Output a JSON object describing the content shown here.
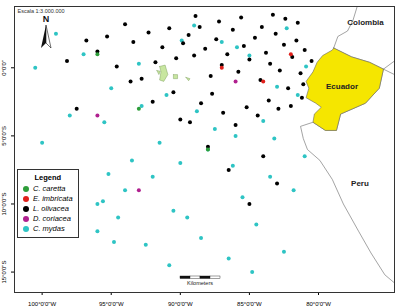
{
  "chart_data": {
    "type": "scatter",
    "xlim": [
      -102,
      -74.5
    ],
    "ylim": [
      -16.5,
      4.5
    ],
    "xticks": [
      {
        "value": -100,
        "label": "100°0'0\"W"
      },
      {
        "value": -95,
        "label": "95°0'0\"W"
      },
      {
        "value": -90,
        "label": "90°0'0\"W"
      },
      {
        "value": -85,
        "label": "85°0'0\"W"
      },
      {
        "value": -80,
        "label": "80°0'0\"W"
      }
    ],
    "yticks": [
      {
        "value": 0,
        "label": "0°0'0\""
      },
      {
        "value": -5,
        "label": "5°0'0\"S"
      },
      {
        "value": -10,
        "label": "10°0'0\"S"
      },
      {
        "value": -15,
        "label": "15°0'0\"S"
      }
    ],
    "legend": "bottom-left",
    "legend_title": "Legend",
    "scale_text": "Escala 1:3.000.000",
    "north_label": "N",
    "scale_bar_label": "Kilometers",
    "countries": [
      {
        "name": "Colombia",
        "color": "#ffffff",
        "polygon": [
          [
            -78.9,
            1.45
          ],
          [
            -78.6,
            2.3
          ],
          [
            -77.9,
            2.7
          ],
          [
            -77.5,
            3.5
          ],
          [
            -77.2,
            4.5
          ],
          [
            -74.5,
            4.5
          ],
          [
            -74.5,
            0.5
          ],
          [
            -75.3,
            -0.1
          ],
          [
            -76.3,
            0.4
          ],
          [
            -77.6,
            0.8
          ],
          [
            -78.9,
            1.45
          ]
        ]
      },
      {
        "name": "Peru",
        "color": "#ffffff",
        "polygon": [
          [
            -75.3,
            -0.1
          ],
          [
            -75.6,
            -1.5
          ],
          [
            -76.6,
            -2.6
          ],
          [
            -78.4,
            -3.4
          ],
          [
            -78.7,
            -4.6
          ],
          [
            -79.5,
            -4.6
          ],
          [
            -80.4,
            -4.0
          ],
          [
            -81.3,
            -4.3
          ],
          [
            -81.1,
            -5.2
          ],
          [
            -80.8,
            -6.0
          ],
          [
            -79.9,
            -6.8
          ],
          [
            -79.0,
            -8.2
          ],
          [
            -78.2,
            -10.0
          ],
          [
            -77.1,
            -12.0
          ],
          [
            -76.2,
            -13.6
          ],
          [
            -75.2,
            -15.2
          ],
          [
            -74.5,
            -15.8
          ],
          [
            -74.5,
            -0.5
          ],
          [
            -75.3,
            -0.1
          ]
        ]
      },
      {
        "name": "Ecuador",
        "color": "#f5e600",
        "polygon": [
          [
            -78.9,
            1.45
          ],
          [
            -77.6,
            0.8
          ],
          [
            -76.3,
            0.4
          ],
          [
            -75.3,
            -0.1
          ],
          [
            -75.6,
            -1.5
          ],
          [
            -76.6,
            -2.6
          ],
          [
            -78.4,
            -3.4
          ],
          [
            -78.7,
            -4.6
          ],
          [
            -79.5,
            -4.6
          ],
          [
            -80.4,
            -4.0
          ],
          [
            -80.3,
            -3.4
          ],
          [
            -79.8,
            -2.9
          ],
          [
            -80.2,
            -2.6
          ],
          [
            -80.9,
            -2.2
          ],
          [
            -80.7,
            -1.5
          ],
          [
            -80.9,
            -1.0
          ],
          [
            -80.4,
            -0.3
          ],
          [
            -80.1,
            0.4
          ],
          [
            -79.7,
            0.9
          ],
          [
            -79.0,
            1.3
          ],
          [
            -78.9,
            1.45
          ]
        ]
      }
    ],
    "islands": {
      "color": "#c8e6a0",
      "polygons": [
        [
          [
            -91.5,
            0.1
          ],
          [
            -91.1,
            0.2
          ],
          [
            -90.9,
            -0.5
          ],
          [
            -91.2,
            -1.0
          ],
          [
            -91.5,
            -0.9
          ],
          [
            -91.4,
            -0.3
          ],
          [
            -91.5,
            0.1
          ]
        ],
        [
          [
            -91.7,
            -0.2
          ],
          [
            -91.45,
            -0.25
          ],
          [
            -91.55,
            -0.5
          ],
          [
            -91.7,
            -0.2
          ]
        ],
        [
          [
            -90.5,
            -0.5
          ],
          [
            -90.2,
            -0.5
          ],
          [
            -90.2,
            -0.8
          ],
          [
            -90.5,
            -0.8
          ],
          [
            -90.5,
            -0.5
          ]
        ],
        [
          [
            -89.6,
            -0.7
          ],
          [
            -89.3,
            -0.8
          ],
          [
            -89.4,
            -0.95
          ],
          [
            -89.6,
            -0.7
          ]
        ]
      ]
    },
    "labels": [
      {
        "text": "Colombia",
        "x": -76.6,
        "y": 3.3
      },
      {
        "text": "Ecuador",
        "x": -78.3,
        "y": -1.4
      },
      {
        "text": "Peru",
        "x": -77.0,
        "y": -8.5
      }
    ],
    "series": [
      {
        "name": "C. mydas",
        "color": "#2ec4c4",
        "x": [
          -80.9,
          -81.5,
          -82.3,
          -83.0,
          -84.0,
          -85.0,
          -86.0,
          -87.0,
          -88.0,
          -89.0,
          -90.0,
          -91.0,
          -92.0,
          -93.0,
          -94.0,
          -95.0,
          -96.0,
          -97.0,
          -98.0,
          -99.0,
          -100.0,
          -100.5,
          -95.2,
          -95.6,
          -96.0,
          -94.5,
          -92.5,
          -90.5,
          -88.5,
          -86.5,
          -84.5,
          -82.5,
          -81.0,
          -83.5,
          -85.5,
          -87.5,
          -89.5,
          -91.5,
          -93.5,
          -95.5,
          -84.8,
          -86.2,
          -88.8,
          -90.8,
          -92.8,
          -94.8,
          -83.2,
          -81.8,
          -85.9,
          -89.9
        ],
        "y": [
          0.1,
          -2.0,
          2.9,
          -1.4,
          -3.9,
          0.9,
          -5.0,
          1.9,
          -6.0,
          3.1,
          -7.0,
          -2.0,
          -8.0,
          0.3,
          -9.0,
          -1.5,
          -10.0,
          1.0,
          -3.5,
          2.5,
          -5.5,
          0.0,
          -7.8,
          -9.8,
          -12.0,
          -11.0,
          -13.0,
          -10.5,
          -12.5,
          -14.0,
          -11.5,
          -13.5,
          -6.5,
          -8.0,
          -9.5,
          -4.5,
          -11.0,
          -5.5,
          -6.8,
          -4.0,
          -15.0,
          -7.2,
          -3.2,
          -14.5,
          -2.8,
          -12.8,
          -5.2,
          -9.0,
          1.5,
          2.0
        ]
      },
      {
        "name": "L. olivacea",
        "color": "#000000",
        "x": [
          -80.5,
          -81.1,
          -81.0,
          -81.3,
          -81.6,
          -81.9,
          -82.2,
          -82.5,
          -82.8,
          -83.1,
          -83.5,
          -83.8,
          -84.2,
          -84.6,
          -85.0,
          -85.4,
          -85.8,
          -86.2,
          -86.6,
          -87.0,
          -87.4,
          -87.8,
          -88.2,
          -88.6,
          -89.0,
          -89.4,
          -89.8,
          -90.3,
          -90.8,
          -91.3,
          -91.8,
          -92.3,
          -92.8,
          -93.4,
          -94.0,
          -94.6,
          -95.3,
          -96.0,
          -81.2,
          -82.0,
          -82.9,
          -83.6,
          -84.4,
          -85.2,
          -86.0,
          -86.9,
          -87.7,
          -88.5,
          -89.3,
          -90.0,
          -81.5,
          -82.4,
          -83.3,
          -84.1,
          -85.6,
          -87.2,
          -88.9,
          -92.0,
          -93.6,
          -96.8,
          -98.2,
          -97.5,
          -84.0,
          -86.5,
          -88.0,
          -83.0,
          -85.0,
          -90.5
        ],
        "y": [
          0.5,
          -1.2,
          1.3,
          -0.4,
          2.0,
          0.8,
          -1.5,
          1.7,
          -0.2,
          2.5,
          0.3,
          1.1,
          -0.9,
          2.2,
          0.6,
          1.6,
          -0.3,
          2.8,
          1.0,
          0.2,
          2.1,
          -0.6,
          1.4,
          3.0,
          0.9,
          2.4,
          1.8,
          0.7,
          2.9,
          1.5,
          0.4,
          2.6,
          -0.8,
          1.9,
          3.2,
          0.1,
          2.3,
          1.2,
          -2.2,
          -2.8,
          -3.0,
          -2.4,
          -3.5,
          -2.9,
          -4.2,
          -3.3,
          -1.9,
          -2.6,
          -4.0,
          -3.8,
          3.3,
          3.6,
          3.9,
          3.0,
          3.7,
          3.4,
          3.8,
          -2.5,
          -1.0,
          2.0,
          0.5,
          -3.0,
          -6.5,
          -7.5,
          -5.8,
          -8.5,
          -10.0,
          -1.8
        ]
      },
      {
        "name": "C. caretta",
        "color": "#2e9e3a",
        "x": [
          -96.0,
          -93.0,
          -88.0
        ],
        "y": [
          1.0,
          -3.0,
          -6.0
        ]
      },
      {
        "name": "E. imbricata",
        "color": "#e0201b",
        "x": [
          -87.0,
          -84.0,
          -82.0
        ],
        "y": [
          0.0,
          -1.0,
          1.0
        ]
      },
      {
        "name": "D. coriacea",
        "color": "#b0208f",
        "x": [
          -96.0,
          -86.0,
          -93.0
        ],
        "y": [
          -3.5,
          -1.0,
          -9.0
        ]
      }
    ],
    "legend_order": [
      "C. caretta",
      "E. imbricata",
      "L. olivacea",
      "D. coriacea",
      "C. mydas"
    ]
  }
}
